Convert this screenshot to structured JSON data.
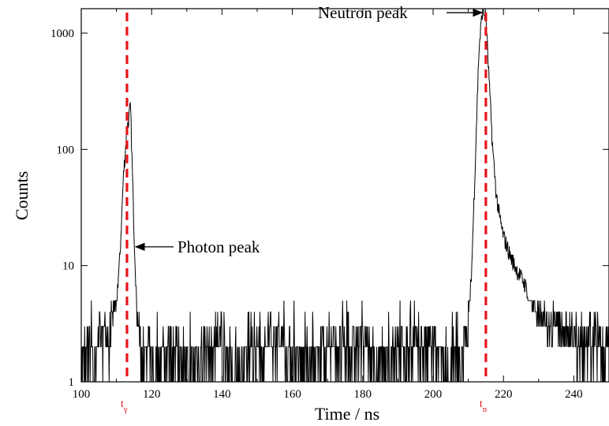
{
  "chart_data": {
    "type": "line",
    "title": "",
    "xlabel": "Time / ns",
    "ylabel": "Counts",
    "xlim": [
      100,
      250
    ],
    "ylim": [
      1,
      2000
    ],
    "y_scale": "log",
    "grid": false,
    "x_ticks": [
      100,
      120,
      140,
      160,
      180,
      200,
      220,
      240
    ],
    "x_tick_labels": [
      "100",
      "120",
      "140",
      "160",
      "180",
      "200",
      "220",
      "240"
    ],
    "y_ticks": [
      1,
      10,
      100,
      1000
    ],
    "y_tick_labels": [
      "1",
      "10",
      "100",
      "1000"
    ],
    "series": [
      {
        "color": "#000000",
        "x": [
          100,
          101,
          102,
          103,
          104,
          105,
          106,
          107,
          108,
          109,
          110,
          111,
          112,
          113,
          114,
          115,
          116,
          117,
          118,
          119,
          120,
          125,
          130,
          135,
          140,
          145,
          150,
          155,
          160,
          165,
          170,
          175,
          180,
          185,
          190,
          195,
          200,
          205,
          209,
          210,
          211,
          212,
          213,
          214,
          215,
          216,
          217,
          218,
          219,
          220,
          222,
          224,
          226,
          228,
          230,
          232,
          234,
          236,
          238,
          240,
          242,
          244,
          246,
          248,
          250
        ],
        "values": [
          2,
          1,
          2,
          2,
          1,
          3,
          2,
          3,
          2,
          4,
          5,
          12,
          60,
          150,
          230,
          20,
          3,
          2,
          1,
          2,
          1,
          2,
          1,
          2,
          2,
          1,
          2,
          2,
          2,
          1,
          2,
          2,
          2,
          1,
          2,
          2,
          2,
          1,
          2,
          3,
          10,
          80,
          700,
          1550,
          1400,
          350,
          95,
          40,
          25,
          18,
          12,
          9,
          7,
          5,
          4,
          3.5,
          3,
          3,
          2.5,
          2.5,
          2,
          2,
          2,
          2,
          2
        ]
      }
    ],
    "markers": [
      {
        "x": 113,
        "label_main": "t",
        "label_sub": "γ",
        "color": "#e8141b"
      },
      {
        "x": 215,
        "label_main": "t",
        "label_sub": "n",
        "color": "#e8141b"
      }
    ],
    "annotations": [
      {
        "text": "Neutron peak",
        "point_x": 214.6,
        "point_y": 1500
      },
      {
        "text": "Photon peak",
        "point_x": 114.8,
        "point_y": 14.5
      }
    ]
  }
}
